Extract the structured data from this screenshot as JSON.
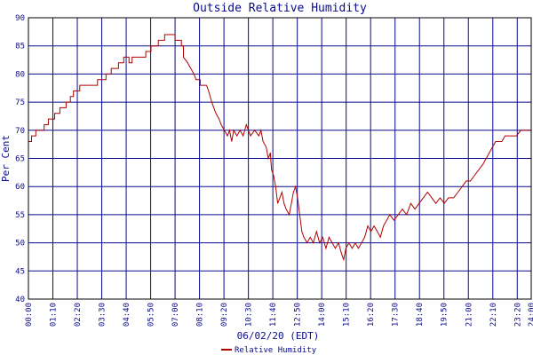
{
  "chart_data": {
    "type": "line",
    "title": "Outside Relative Humidity",
    "xlabel": "06/02/20 (EDT)",
    "ylabel": "Per Cent",
    "ylim": [
      40,
      90
    ],
    "yticks": [
      40,
      45,
      50,
      55,
      60,
      65,
      70,
      75,
      80,
      85,
      90
    ],
    "xlim_hours": [
      0,
      24
    ],
    "xticks": [
      {
        "h": 0,
        "label": "00:00"
      },
      {
        "h": 1.1667,
        "label": "01:10"
      },
      {
        "h": 2.3333,
        "label": "02:20"
      },
      {
        "h": 3.5,
        "label": "03:30"
      },
      {
        "h": 4.6667,
        "label": "04:40"
      },
      {
        "h": 5.8333,
        "label": "05:50"
      },
      {
        "h": 7.0,
        "label": "07:00"
      },
      {
        "h": 8.1667,
        "label": "08:10"
      },
      {
        "h": 9.3333,
        "label": "09:20"
      },
      {
        "h": 10.5,
        "label": "10:30"
      },
      {
        "h": 11.6667,
        "label": "11:40"
      },
      {
        "h": 12.8333,
        "label": "12:50"
      },
      {
        "h": 14.0,
        "label": "14:00"
      },
      {
        "h": 15.1667,
        "label": "15:10"
      },
      {
        "h": 16.3333,
        "label": "16:20"
      },
      {
        "h": 17.5,
        "label": "17:30"
      },
      {
        "h": 18.6667,
        "label": "18:40"
      },
      {
        "h": 19.8333,
        "label": "19:50"
      },
      {
        "h": 21.0,
        "label": "21:00"
      },
      {
        "h": 22.1667,
        "label": "22:10"
      },
      {
        "h": 23.3333,
        "label": "23:20"
      },
      {
        "h": 24.0,
        "label": "24:00"
      }
    ],
    "grid": true,
    "legend_position": "bottom-center",
    "colors": {
      "line": "#b00000",
      "grid": "#0a0a8c",
      "text": "#0a0a8c",
      "frame": "#000000"
    },
    "series": [
      {
        "name": "Relative Humidity",
        "points": [
          [
            0.0,
            68
          ],
          [
            0.15,
            68
          ],
          [
            0.15,
            69
          ],
          [
            0.35,
            69
          ],
          [
            0.35,
            70
          ],
          [
            0.75,
            70
          ],
          [
            0.75,
            71
          ],
          [
            0.95,
            71
          ],
          [
            0.95,
            72
          ],
          [
            1.25,
            72
          ],
          [
            1.25,
            73
          ],
          [
            1.5,
            73
          ],
          [
            1.5,
            74
          ],
          [
            1.8,
            74
          ],
          [
            1.8,
            75
          ],
          [
            2.0,
            75
          ],
          [
            2.0,
            76
          ],
          [
            2.15,
            76
          ],
          [
            2.15,
            77
          ],
          [
            2.45,
            77
          ],
          [
            2.45,
            78
          ],
          [
            3.3,
            78
          ],
          [
            3.3,
            79
          ],
          [
            3.7,
            79
          ],
          [
            3.7,
            80
          ],
          [
            3.95,
            80
          ],
          [
            3.95,
            81
          ],
          [
            4.3,
            81
          ],
          [
            4.3,
            82
          ],
          [
            4.55,
            82
          ],
          [
            4.55,
            83
          ],
          [
            4.8,
            83
          ],
          [
            4.8,
            82
          ],
          [
            4.95,
            82
          ],
          [
            4.95,
            83
          ],
          [
            5.6,
            83
          ],
          [
            5.6,
            84
          ],
          [
            5.85,
            84
          ],
          [
            5.85,
            85
          ],
          [
            6.2,
            85
          ],
          [
            6.2,
            86
          ],
          [
            6.5,
            86
          ],
          [
            6.5,
            87
          ],
          [
            7.0,
            87
          ],
          [
            7.0,
            86
          ],
          [
            7.3,
            86
          ],
          [
            7.3,
            85
          ],
          [
            7.4,
            85
          ],
          [
            7.4,
            83
          ],
          [
            7.6,
            82
          ],
          [
            7.75,
            81
          ],
          [
            7.9,
            80
          ],
          [
            8.0,
            79
          ],
          [
            8.2,
            79
          ],
          [
            8.2,
            78
          ],
          [
            8.5,
            78
          ],
          [
            8.6,
            77
          ],
          [
            8.75,
            75
          ],
          [
            8.85,
            74
          ],
          [
            8.95,
            73
          ],
          [
            9.1,
            72
          ],
          [
            9.2,
            71
          ],
          [
            9.35,
            70
          ],
          [
            9.5,
            69
          ],
          [
            9.6,
            70
          ],
          [
            9.7,
            68
          ],
          [
            9.8,
            70
          ],
          [
            9.95,
            69
          ],
          [
            10.1,
            70
          ],
          [
            10.25,
            69
          ],
          [
            10.4,
            71
          ],
          [
            10.5,
            70
          ],
          [
            10.6,
            69
          ],
          [
            10.8,
            70
          ],
          [
            11.0,
            69
          ],
          [
            11.1,
            70
          ],
          [
            11.2,
            68
          ],
          [
            11.35,
            67
          ],
          [
            11.45,
            65
          ],
          [
            11.55,
            66
          ],
          [
            11.6,
            63
          ],
          [
            11.7,
            62
          ],
          [
            11.8,
            60
          ],
          [
            11.9,
            57
          ],
          [
            12.0,
            58
          ],
          [
            12.1,
            59
          ],
          [
            12.2,
            57
          ],
          [
            12.3,
            56
          ],
          [
            12.45,
            55
          ],
          [
            12.55,
            57
          ],
          [
            12.65,
            59
          ],
          [
            12.75,
            60
          ],
          [
            12.85,
            58
          ],
          [
            12.95,
            55
          ],
          [
            13.05,
            52
          ],
          [
            13.15,
            51
          ],
          [
            13.3,
            50
          ],
          [
            13.45,
            51
          ],
          [
            13.6,
            50
          ],
          [
            13.75,
            52
          ],
          [
            13.9,
            50
          ],
          [
            14.05,
            51
          ],
          [
            14.2,
            49
          ],
          [
            14.35,
            51
          ],
          [
            14.5,
            50
          ],
          [
            14.65,
            49
          ],
          [
            14.8,
            50
          ],
          [
            14.95,
            48
          ],
          [
            15.05,
            47
          ],
          [
            15.15,
            49
          ],
          [
            15.3,
            50
          ],
          [
            15.45,
            49
          ],
          [
            15.6,
            50
          ],
          [
            15.75,
            49
          ],
          [
            15.9,
            50
          ],
          [
            16.05,
            51
          ],
          [
            16.2,
            53
          ],
          [
            16.35,
            52
          ],
          [
            16.5,
            53
          ],
          [
            16.65,
            52
          ],
          [
            16.8,
            51
          ],
          [
            16.95,
            53
          ],
          [
            17.1,
            54
          ],
          [
            17.25,
            55
          ],
          [
            17.45,
            54
          ],
          [
            17.65,
            55
          ],
          [
            17.85,
            56
          ],
          [
            18.05,
            55
          ],
          [
            18.25,
            57
          ],
          [
            18.45,
            56
          ],
          [
            18.65,
            57
          ],
          [
            18.85,
            58
          ],
          [
            19.05,
            59
          ],
          [
            19.25,
            58
          ],
          [
            19.45,
            57
          ],
          [
            19.65,
            58
          ],
          [
            19.85,
            57
          ],
          [
            20.05,
            58
          ],
          [
            20.3,
            58
          ],
          [
            20.5,
            59
          ],
          [
            20.7,
            60
          ],
          [
            20.9,
            61
          ],
          [
            21.1,
            61
          ],
          [
            21.3,
            62
          ],
          [
            21.5,
            63
          ],
          [
            21.7,
            64
          ],
          [
            21.85,
            65
          ],
          [
            22.0,
            66
          ],
          [
            22.15,
            67
          ],
          [
            22.3,
            68
          ],
          [
            22.6,
            68
          ],
          [
            22.75,
            69
          ],
          [
            23.3,
            69
          ],
          [
            23.5,
            70
          ],
          [
            24.0,
            70
          ]
        ]
      }
    ]
  }
}
